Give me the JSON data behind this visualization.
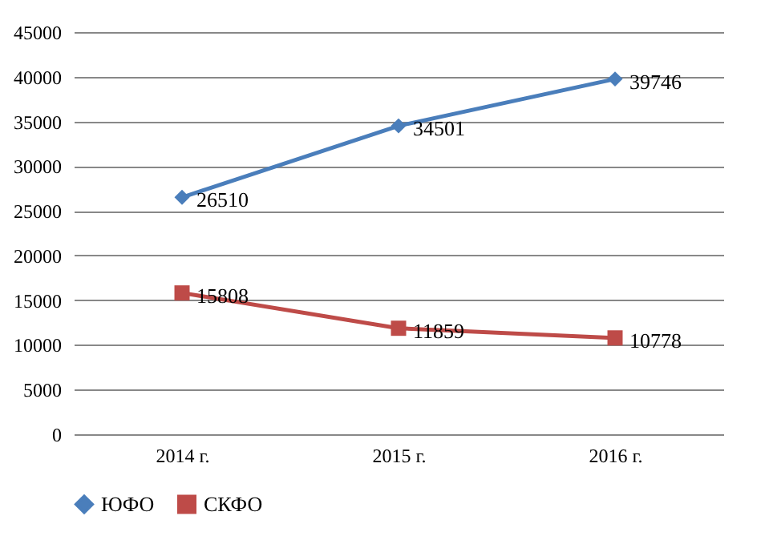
{
  "chart_data": {
    "type": "line",
    "categories": [
      "2014 г.",
      "2015 г.",
      "2016 г."
    ],
    "series": [
      {
        "name": "ЮФО",
        "color": "#4a7ebb",
        "values": [
          26510,
          34501,
          39746
        ],
        "marker": "diamond"
      },
      {
        "name": "СКФО",
        "color": "#be4b48",
        "values": [
          15808,
          11859,
          10778
        ],
        "marker": "square"
      }
    ],
    "ylim": [
      0,
      45000
    ],
    "yticks": [
      0,
      5000,
      10000,
      15000,
      20000,
      25000,
      30000,
      35000,
      40000,
      45000
    ],
    "grid": "y",
    "legend": "bottom",
    "data_labels": true,
    "line_style": "solid"
  }
}
